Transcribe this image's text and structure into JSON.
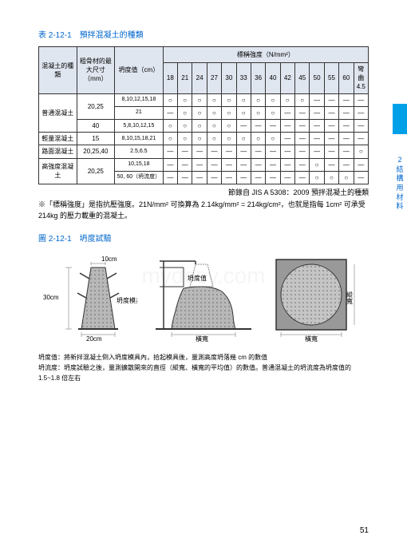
{
  "table": {
    "title": "表 2-12-1　預拌混凝土的種類",
    "headers": {
      "h1": "混凝土的種類",
      "h2": "粗骨材的最大尺寸（mm）",
      "h3": "坍度值（cm）",
      "h4": "標稱強度（N/mm²）",
      "cols": [
        "18",
        "21",
        "24",
        "27",
        "30",
        "33",
        "36",
        "40",
        "42",
        "45",
        "50",
        "55",
        "60",
        "彎曲4.5"
      ]
    },
    "rows": [
      {
        "type": "普通混凝土",
        "size": "20,25",
        "slump": "8,10,12,15,18",
        "v": [
          "O",
          "O",
          "O",
          "O",
          "O",
          "O",
          "O",
          "O",
          "O",
          "O",
          "—",
          "—",
          "—",
          "—"
        ]
      },
      {
        "type": "",
        "size": "",
        "slump": "21",
        "v": [
          "—",
          "O",
          "O",
          "O",
          "O",
          "O",
          "O",
          "O",
          "—",
          "—",
          "—",
          "—",
          "—",
          "—"
        ]
      },
      {
        "type": "",
        "size": "40",
        "slump": "5,8,10,12,15",
        "v": [
          "O",
          "O",
          "O",
          "O",
          "O",
          "—",
          "—",
          "—",
          "—",
          "—",
          "—",
          "—",
          "—",
          "—"
        ]
      },
      {
        "type": "輕量混凝土",
        "size": "15",
        "slump": "8,10,15,18,21",
        "v": [
          "O",
          "O",
          "O",
          "O",
          "O",
          "O",
          "O",
          "O",
          "—",
          "—",
          "—",
          "—",
          "—",
          "—"
        ]
      },
      {
        "type": "路面混凝土",
        "size": "20,25,40",
        "slump": "2.5,6.5",
        "v": [
          "—",
          "—",
          "—",
          "—",
          "—",
          "—",
          "—",
          "—",
          "—",
          "—",
          "—",
          "—",
          "—",
          "O"
        ]
      },
      {
        "type": "高強度混凝土",
        "size": "20,25",
        "slump": "10,15,18",
        "v": [
          "—",
          "—",
          "—",
          "—",
          "—",
          "—",
          "—",
          "—",
          "—",
          "—",
          "O",
          "—",
          "—",
          "—"
        ]
      },
      {
        "type": "",
        "size": "",
        "slump": "50, 60（坍流度）",
        "v": [
          "—",
          "—",
          "—",
          "—",
          "—",
          "—",
          "—",
          "—",
          "—",
          "—",
          "O",
          "O",
          "O",
          "—"
        ]
      }
    ],
    "source": "節錄自 JIS A 5308：2009 預拌混凝土的種類",
    "note": "※「標稱強度」是指抗壓強度。21N/mm² 可換算為 2.14kg/mm² = 214kg/cm²，也就是指每 1cm² 可承受 214kg 的壓力載重的混凝土。"
  },
  "figure": {
    "title": "圖 2-12-1　坍度試驗",
    "labels": {
      "h": "30cm",
      "top": "10cm",
      "base": "20cm",
      "mold": "坍度模具",
      "slump": "坍度值",
      "width": "橫寬",
      "vert": "縱寬"
    },
    "notes": {
      "n1": "坍度值：將新拌混凝土倒入坍度模具內，拾起模具後，量測高度坍落幾 cm 的數值",
      "n2": "坍流度：坍度試驗之後，量測擴散開來的直徑（縱寬、橫寬的平均值）的數值。普通混凝土的坍流度為坍度值的 1.5~1.8 倍左右"
    }
  },
  "side": {
    "chapter": "2",
    "chars": [
      "結",
      "構",
      "用",
      "材",
      "料"
    ]
  },
  "pagenum": "51"
}
